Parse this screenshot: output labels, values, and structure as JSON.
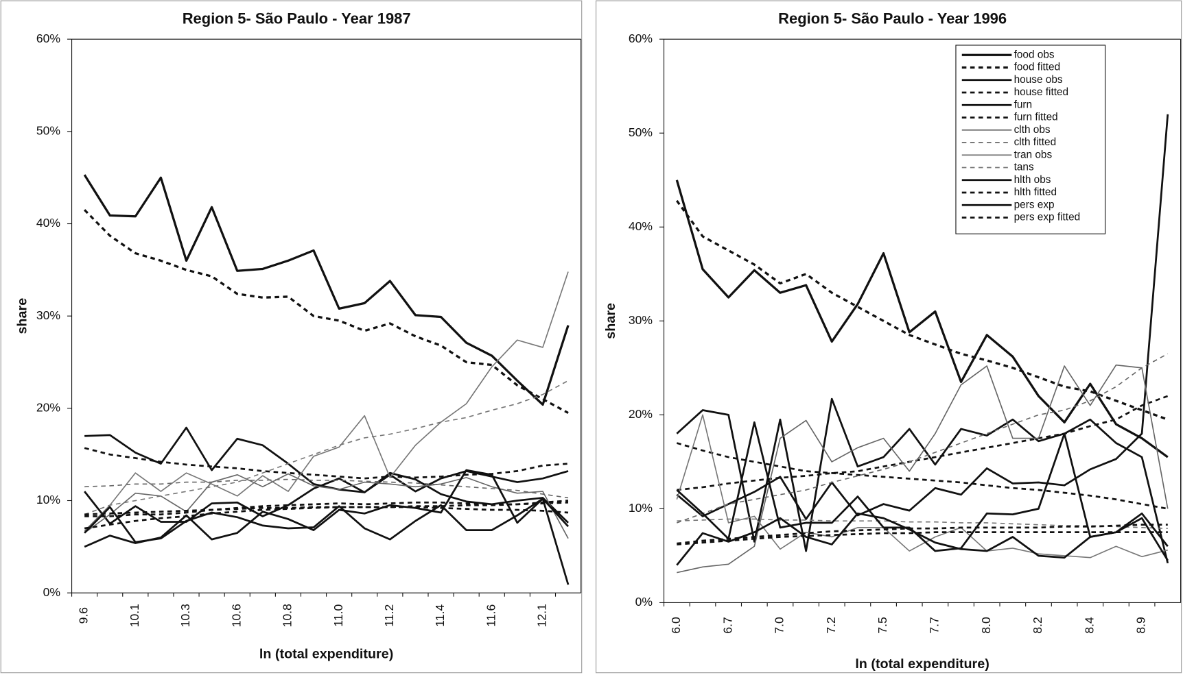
{
  "chart_data": [
    {
      "type": "line",
      "title": "Region 5- São Paulo  - Year 1987",
      "xlabel": "ln (total expenditure)",
      "ylabel": "share",
      "categories": [
        "9.6",
        null,
        "10.1",
        null,
        "10.3",
        null,
        "10.6",
        null,
        "10.8",
        null,
        "11.0",
        null,
        "11.2",
        null,
        "11.4",
        null,
        "11.6",
        null,
        "12.1",
        null
      ],
      "ylim": [
        0,
        60
      ],
      "yticks": [
        {
          "value": 0,
          "label": "0%"
        },
        {
          "value": 10,
          "label": "10%"
        },
        {
          "value": 20,
          "label": "20%"
        },
        {
          "value": 30,
          "label": "30%"
        },
        {
          "value": 40,
          "label": "40%"
        },
        {
          "value": 50,
          "label": "50%"
        },
        {
          "value": 60,
          "label": "60%"
        }
      ],
      "series": [
        {
          "color": "#111",
          "dashed": false,
          "width": 3,
          "values": [
            45.3,
            40.9,
            40.8,
            45,
            36,
            41.8,
            34.9,
            35.1,
            36,
            37.1,
            30.8,
            31.4,
            33.8,
            30.1,
            29.9,
            27.1,
            25.7,
            23,
            20.4,
            29
          ]
        },
        {
          "color": "#111",
          "dashed": true,
          "width": 3,
          "values": [
            41.5,
            38.7,
            36.8,
            36,
            35,
            34.3,
            32.4,
            32,
            32.1,
            30,
            29.5,
            28.4,
            29.2,
            27.8,
            26.8,
            25,
            24.7,
            22.5,
            21,
            19.5
          ]
        },
        {
          "color": "#111",
          "dashed": false,
          "width": 2.5,
          "values": [
            17,
            17.1,
            15.2,
            14,
            17.9,
            13.3,
            16.7,
            16,
            14,
            11.8,
            11.2,
            10.9,
            12.8,
            11,
            12.4,
            13.2,
            12.6,
            12,
            12.4,
            13.2
          ]
        },
        {
          "color": "#111",
          "dashed": true,
          "width": 2.5,
          "values": [
            15.7,
            15,
            14.6,
            14.2,
            13.9,
            13.7,
            13.5,
            13.2,
            13,
            12.8,
            12.6,
            12.4,
            12.6,
            12.5,
            12.6,
            12.8,
            12.9,
            13.2,
            13.8,
            14
          ]
        },
        {
          "color": "#111",
          "dashed": false,
          "width": 2.5,
          "values": [
            11,
            7.5,
            9.4,
            7.7,
            7.7,
            9.7,
            9.8,
            8.3,
            9.5,
            11.3,
            12.4,
            10.9,
            13,
            12.3,
            10.7,
            9.9,
            9.6,
            10,
            10.3,
            7.6
          ]
        },
        {
          "color": "#111",
          "dashed": true,
          "width": 2.5,
          "values": [
            8.3,
            8.3,
            8.5,
            8.5,
            8.7,
            9,
            9.2,
            9.4,
            9.5,
            9.6,
            9.7,
            9.6,
            9.7,
            9.8,
            9.8,
            9.7,
            9.6,
            9.6,
            9.7,
            9.8
          ]
        },
        {
          "color": "#666",
          "dashed": false,
          "width": 1.5,
          "values": [
            6.5,
            8.5,
            10.8,
            10.5,
            8.8,
            12,
            12.8,
            11.5,
            12.9,
            11.6,
            11.2,
            12,
            11.8,
            11.5,
            11.8,
            12.5,
            11.5,
            10.8,
            11,
            5.9
          ]
        },
        {
          "color": "#666",
          "dashed": true,
          "width": 1.5,
          "values": [
            11.5,
            11.6,
            11.8,
            11.8,
            12,
            12,
            12.2,
            12.2,
            12.3,
            12.2,
            12.2,
            12.1,
            12,
            11.9,
            11.7,
            11.5,
            11.3,
            11.1,
            10.7,
            10.3
          ]
        },
        {
          "color": "#777",
          "dashed": false,
          "width": 1.5,
          "values": [
            6.7,
            9.5,
            13,
            11,
            13,
            11.8,
            10.5,
            12.7,
            11,
            14.8,
            15.8,
            19.2,
            12.5,
            16,
            18.5,
            20.5,
            24.5,
            27.4,
            26.6,
            34.8
          ]
        },
        {
          "color": "#777",
          "dashed": true,
          "width": 1.5,
          "values": [
            8.5,
            9.5,
            10,
            10.5,
            11,
            11.5,
            12,
            13,
            14,
            15,
            16,
            16.8,
            17.2,
            17.8,
            18.5,
            19,
            19.8,
            20.5,
            21.5,
            23
          ]
        },
        {
          "color": "#111",
          "dashed": false,
          "width": 2.5,
          "values": [
            5,
            6.2,
            5.4,
            6,
            8.4,
            5.8,
            6.5,
            8.8,
            8,
            6.8,
            9,
            8.6,
            9.5,
            9.2,
            8.7,
            13.3,
            12.8,
            7.6,
            10.2,
            0.9
          ]
        },
        {
          "color": "#111",
          "dashed": true,
          "width": 2.5,
          "values": [
            7,
            7.4,
            7.8,
            8.1,
            8.3,
            8.6,
            8.8,
            9,
            9.1,
            9.2,
            9.3,
            9.3,
            9.3,
            9.3,
            9.2,
            9.1,
            9,
            9,
            8.9,
            8.7
          ]
        },
        {
          "color": "#111",
          "dashed": false,
          "width": 2.5,
          "values": [
            6.5,
            9.3,
            5.5,
            5.9,
            7.8,
            8.7,
            8.2,
            7.3,
            7,
            7.1,
            9.4,
            7,
            5.8,
            7.8,
            9.5,
            6.8,
            6.8,
            8.4,
            10.2,
            7.2
          ]
        },
        {
          "color": "#111",
          "dashed": true,
          "width": 2.5,
          "values": [
            8.5,
            8.6,
            8.7,
            8.8,
            8.9,
            9,
            9.1,
            9.2,
            9.2,
            9.3,
            9.3,
            9.3,
            9.3,
            9.4,
            9.4,
            9.5,
            9.5,
            9.6,
            9.8,
            10
          ]
        }
      ]
    },
    {
      "type": "line",
      "title": "Region 5- São Paulo  - Year 1996",
      "xlabel": "ln (total expenditure)",
      "ylabel": "share",
      "categories": [
        "6.0",
        null,
        "6.7",
        null,
        "7.0",
        null,
        "7.2",
        null,
        "7.5",
        null,
        "7.7",
        null,
        "8.0",
        null,
        "8.2",
        null,
        "8.4",
        null,
        "8.9",
        null
      ],
      "ylim": [
        0,
        60
      ],
      "legend": "top-right",
      "yticks": [
        {
          "value": 0,
          "label": "0%"
        },
        {
          "value": 10,
          "label": "10%"
        },
        {
          "value": 20,
          "label": "20%"
        },
        {
          "value": 30,
          "label": "30%"
        },
        {
          "value": 40,
          "label": "40%"
        },
        {
          "value": 50,
          "label": "50%"
        },
        {
          "value": 60,
          "label": "60%"
        }
      ],
      "series": [
        {
          "name": "food obs",
          "color": "#111",
          "dashed": false,
          "width": 3,
          "values": [
            45,
            35.5,
            32.5,
            35.4,
            33,
            33.8,
            27.8,
            31.8,
            37.2,
            28.8,
            31,
            23.5,
            28.5,
            26.2,
            22,
            19.2,
            23.3,
            19,
            17.5,
            15.5
          ]
        },
        {
          "name": "food fitted",
          "color": "#111",
          "dashed": true,
          "width": 3,
          "values": [
            42.8,
            39,
            37.5,
            36,
            34,
            35,
            33,
            31.5,
            30,
            28.5,
            27.5,
            26.5,
            25.8,
            25,
            24,
            23,
            22.5,
            21.5,
            20.5,
            19.5
          ]
        },
        {
          "name": "house obs",
          "color": "#111",
          "dashed": false,
          "width": 2.5,
          "values": [
            18,
            20.5,
            20,
            6.5,
            19.5,
            5.5,
            21.7,
            14.5,
            15.5,
            18.5,
            14.7,
            18.5,
            17.8,
            19.5,
            17.2,
            18,
            19.5,
            17,
            15.5,
            4.2
          ]
        },
        {
          "name": "house fitted",
          "color": "#111",
          "dashed": true,
          "width": 2.5,
          "values": [
            17,
            16.2,
            15.5,
            15,
            14.5,
            14,
            13.8,
            13.6,
            13.4,
            13.2,
            13,
            12.8,
            12.5,
            12.2,
            12,
            11.7,
            11.4,
            11,
            10.5,
            10
          ]
        },
        {
          "name": "furn",
          "color": "#111",
          "dashed": false,
          "width": 2.5,
          "values": [
            11.5,
            9.2,
            10.5,
            11.8,
            13.4,
            8.9,
            12.8,
            9.3,
            10.5,
            9.8,
            12.2,
            11.5,
            14.3,
            12.7,
            12.8,
            12.5,
            14.2,
            15.3,
            18,
            52
          ]
        },
        {
          "name": "furn fitted",
          "color": "#111",
          "dashed": true,
          "width": 2.5,
          "values": [
            12,
            12.3,
            12.7,
            13,
            13.3,
            13.5,
            13.8,
            14,
            14.5,
            15,
            15.5,
            16,
            16.5,
            17,
            17.5,
            18,
            18.8,
            19.5,
            21,
            22
          ]
        },
        {
          "name": "clth obs",
          "color": "#666",
          "dashed": false,
          "width": 1.5,
          "values": [
            3.2,
            3.8,
            4.1,
            6,
            17.5,
            19.4,
            15,
            16.5,
            17.5,
            14,
            18,
            23.2,
            25.2,
            17.5,
            17.5,
            25.2,
            21,
            25.3,
            25,
            10
          ]
        },
        {
          "name": "clth fitted",
          "color": "#666",
          "dashed": true,
          "width": 1.5,
          "values": [
            8.5,
            9.5,
            10.5,
            11,
            11.5,
            12,
            12.8,
            13.5,
            14.2,
            15,
            16,
            17,
            18,
            19,
            20,
            20.5,
            21.5,
            23,
            25,
            26.5
          ]
        },
        {
          "name": "tran obs",
          "color": "#777",
          "dashed": false,
          "width": 1.5,
          "values": [
            11,
            20,
            8.5,
            9.2,
            5.7,
            7.5,
            7,
            8,
            8,
            5.5,
            7,
            8,
            5.5,
            5.8,
            5.2,
            5,
            4.8,
            6,
            4.9,
            5.6
          ]
        },
        {
          "name": "tans",
          "color": "#777",
          "dashed": true,
          "width": 1.5,
          "values": [
            8.7,
            8.8,
            8.9,
            8.9,
            8.8,
            8.8,
            8.7,
            8.7,
            8.7,
            8.6,
            8.6,
            8.5,
            8.5,
            8.4,
            8.3,
            8.2,
            8.2,
            8.1,
            8,
            7.9
          ]
        },
        {
          "name": "hlth obs",
          "color": "#111",
          "dashed": false,
          "width": 2.5,
          "values": [
            4,
            7.4,
            6.5,
            7.5,
            9,
            7,
            6.2,
            9.5,
            9,
            7.8,
            6.4,
            5.7,
            5.5,
            7,
            5,
            4.8,
            7,
            7.5,
            9,
            4.5
          ]
        },
        {
          "name": "hlth fitted",
          "color": "#111",
          "dashed": true,
          "width": 2.5,
          "values": [
            6.2,
            6.4,
            6.6,
            6.8,
            7,
            7.1,
            7.2,
            7.3,
            7.4,
            7.4,
            7.5,
            7.5,
            7.5,
            7.5,
            7.5,
            7.5,
            7.5,
            7.5,
            7.5,
            7.5
          ]
        },
        {
          "name": "pers exp",
          "color": "#111",
          "dashed": false,
          "width": 2.5,
          "values": [
            12,
            9.5,
            6.8,
            19.2,
            8,
            8.5,
            8.5,
            11.3,
            8,
            8,
            5.5,
            5.8,
            9.5,
            9.4,
            10,
            18,
            7,
            7.5,
            9.5,
            6
          ]
        },
        {
          "name": "pers exp fitted",
          "color": "#111",
          "dashed": true,
          "width": 2.5,
          "values": [
            6.3,
            6.6,
            6.8,
            7,
            7.2,
            7.4,
            7.6,
            7.7,
            7.8,
            7.9,
            7.9,
            8,
            8,
            8,
            8,
            8.1,
            8.1,
            8.2,
            8.3,
            8.3
          ]
        }
      ]
    }
  ]
}
